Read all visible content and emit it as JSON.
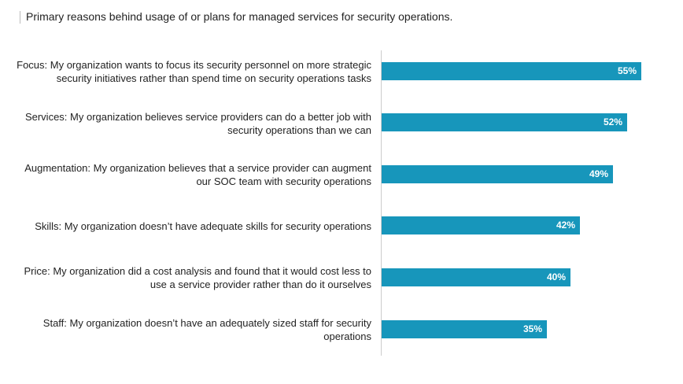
{
  "chart_data": {
    "type": "bar",
    "orientation": "horizontal",
    "title": "Primary reasons behind usage of or plans for managed services for security operations.",
    "categories": [
      "Focus: My organization wants to focus its security personnel on more strategic security initiatives rather than spend time on security operations tasks",
      "Services: My organization believes service providers can do a better job with security operations than we can",
      "Augmentation: My organization believes that a service provider can augment our SOC team with security operations",
      "Skills: My organization doesn’t have adequate skills for security operations",
      "Price: My organization did a cost analysis and found that it would cost less to use a service provider rather than do it ourselves",
      "Staff: My organization doesn’t have an adequately sized staff for security operations"
    ],
    "values": [
      55,
      52,
      49,
      42,
      40,
      35
    ],
    "value_labels": [
      "55%",
      "52%",
      "49%",
      "42%",
      "40%",
      "35%"
    ],
    "color": "#1796bb"
  }
}
